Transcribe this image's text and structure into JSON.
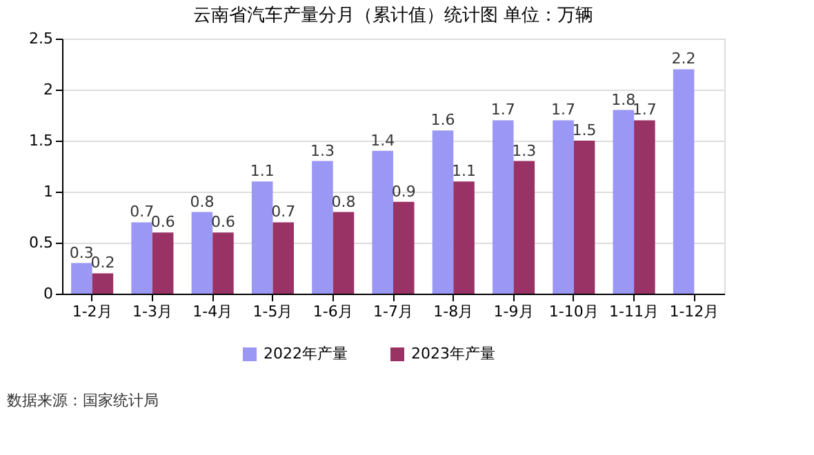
{
  "chart_data": {
    "type": "bar",
    "title": "云南省汽车产量分月（累计值）统计图 单位：万辆",
    "categories": [
      "1-2月",
      "1-3月",
      "1-4月",
      "1-5月",
      "1-6月",
      "1-7月",
      "1-8月",
      "1-9月",
      "1-10月",
      "1-11月",
      "1-12月"
    ],
    "series": [
      {
        "name": "2022年产量",
        "color": "#9b97f4",
        "values": [
          0.3,
          0.7,
          0.8,
          1.1,
          1.3,
          1.4,
          1.6,
          1.7,
          1.7,
          1.8,
          2.2
        ]
      },
      {
        "name": "2023年产量",
        "color": "#993366",
        "values": [
          0.2,
          0.6,
          0.6,
          0.7,
          0.8,
          0.9,
          1.1,
          1.3,
          1.5,
          1.7,
          null
        ]
      }
    ],
    "ylim": [
      0,
      2.5
    ],
    "yticks": [
      0,
      0.5,
      1,
      1.5,
      2,
      2.5
    ],
    "grid": "y",
    "legend": "bottom",
    "data_labels": true,
    "annotations": [
      "数据来源：国家统计局"
    ]
  }
}
